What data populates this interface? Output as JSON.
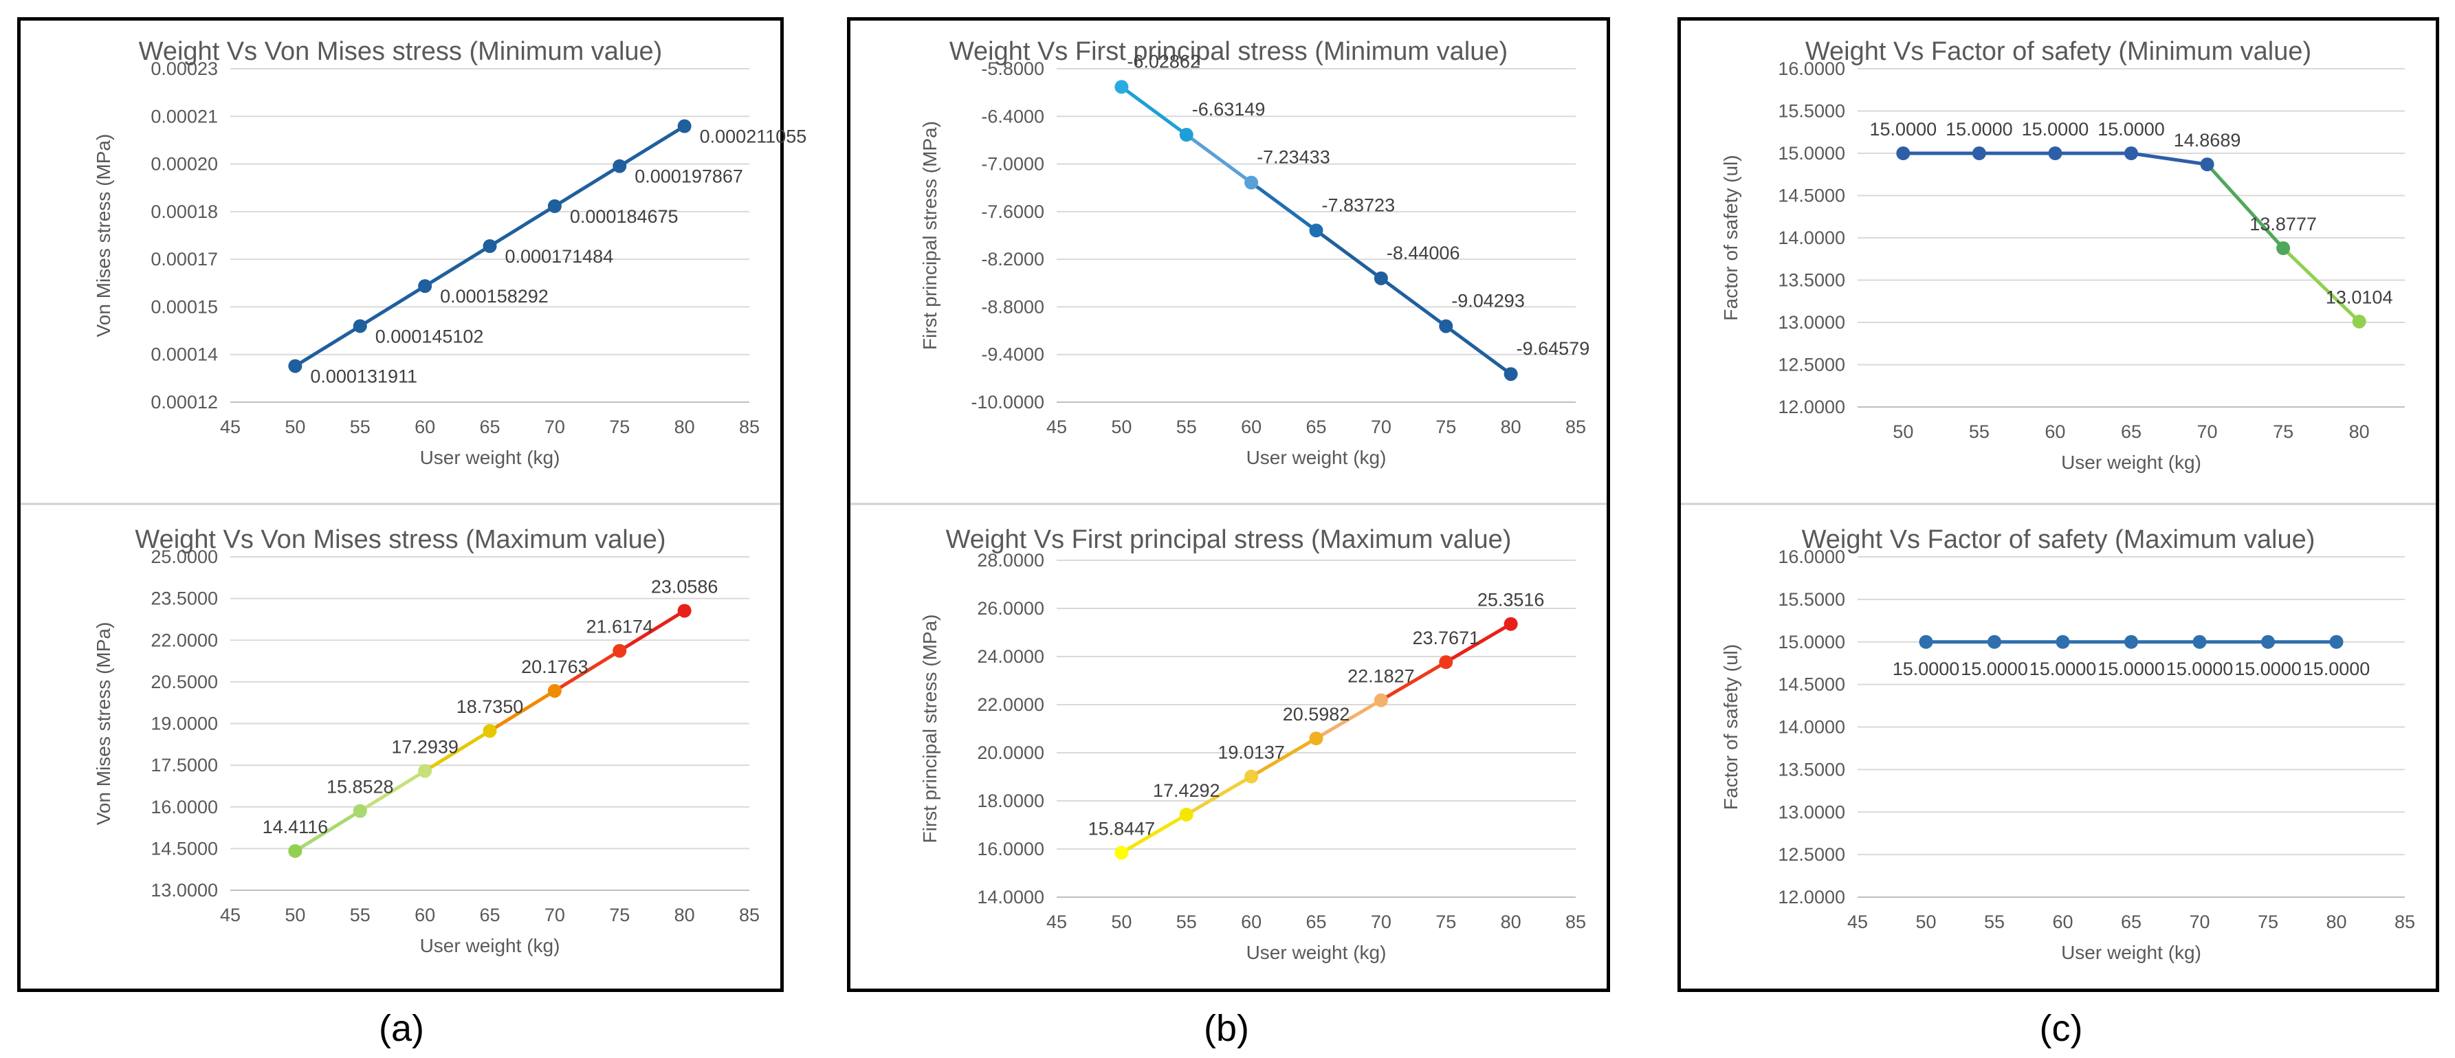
{
  "panels": [
    {
      "id": "a",
      "caption": "(a)"
    },
    {
      "id": "b",
      "caption": "(b)"
    },
    {
      "id": "c",
      "caption": "(c)"
    }
  ],
  "colors": {
    "blue": "#2f6fae",
    "light_blue": "#29abe2"
  },
  "chart_data": [
    {
      "panel": "a",
      "position": "top",
      "type": "line",
      "title": "Weight Vs Von Mises stress (Minimum value)",
      "xlabel": "User weight (kg)",
      "ylabel": "Von Mises stress (MPa)",
      "xlim": [
        45,
        85
      ],
      "xticks": [
        "45",
        "50",
        "55",
        "60",
        "65",
        "70",
        "75",
        "80",
        "85"
      ],
      "ylim": [
        0.00012,
        0.00023
      ],
      "yticks": [
        "0.00012",
        "0.00014",
        "0.00015",
        "0.00017",
        "0.00018",
        "0.00020",
        "0.00021",
        "0.00023"
      ],
      "x": [
        50,
        55,
        60,
        65,
        70,
        75,
        80
      ],
      "y": [
        0.000131911,
        0.000145102,
        0.000158292,
        0.000171484,
        0.000184675,
        0.000197867,
        0.000211055
      ],
      "labels": [
        "0.000131911",
        "0.000145102",
        "0.000158292",
        "0.000171484",
        "0.000184675",
        "0.000197867",
        "0.000211055"
      ],
      "label_pos": "right",
      "colors": [
        "#1f5f9e",
        "#1f5f9e",
        "#1f5f9e",
        "#1f5f9e",
        "#1f5f9e",
        "#1f5f9e",
        "#1f5f9e"
      ]
    },
    {
      "panel": "a",
      "position": "bottom",
      "type": "line",
      "title": "Weight Vs Von Mises stress (Maximum value)",
      "xlabel": "User weight (kg)",
      "ylabel": "Von Mises stress (MPa)",
      "xlim": [
        45,
        85
      ],
      "xticks": [
        "45",
        "50",
        "55",
        "60",
        "65",
        "70",
        "75",
        "80",
        "85"
      ],
      "ylim": [
        13,
        25
      ],
      "yticks": [
        "13.0000",
        "14.5000",
        "16.0000",
        "17.5000",
        "19.0000",
        "20.5000",
        "22.0000",
        "23.5000",
        "25.0000"
      ],
      "x": [
        50,
        55,
        60,
        65,
        70,
        75,
        80
      ],
      "y": [
        14.4116,
        15.8528,
        17.2939,
        18.735,
        20.1763,
        21.6174,
        23.0586
      ],
      "labels": [
        "14.4116",
        "15.8528",
        "17.2939",
        "18.7350",
        "20.1763",
        "21.6174",
        "23.0586"
      ],
      "label_pos": "above",
      "colors": [
        "#92d050",
        "#a9d870",
        "#c6e07a",
        "#e6c800",
        "#f08a00",
        "#ee3a1a",
        "#e8201a"
      ]
    },
    {
      "panel": "b",
      "position": "top",
      "type": "line",
      "title": "Weight Vs First principal stress (Minimum value)",
      "xlabel": "User weight (kg)",
      "ylabel": "First principal stress (MPa)",
      "xlim": [
        45,
        85
      ],
      "xticks": [
        "45",
        "50",
        "55",
        "60",
        "65",
        "70",
        "75",
        "80",
        "85"
      ],
      "ylim": [
        -10,
        -5.8
      ],
      "yticks": [
        "-10.0000",
        "-9.4000",
        "-8.8000",
        "-8.2000",
        "-7.6000",
        "-7.0000",
        "-6.4000",
        "-5.8000"
      ],
      "x": [
        50,
        55,
        60,
        65,
        70,
        75,
        80
      ],
      "y": [
        -6.02862,
        -6.63149,
        -7.23433,
        -7.83723,
        -8.44006,
        -9.04293,
        -9.64579
      ],
      "labels": [
        "-6.02862",
        "-6.63149",
        "-7.23433",
        "-7.83723",
        "-8.44006",
        "-9.04293",
        "-9.64579"
      ],
      "label_pos": "above-right",
      "colors": [
        "#29abe2",
        "#1e9fd8",
        "#5aa0d8",
        "#1f6fb2",
        "#1f5f9e",
        "#1f5f9e",
        "#1f5f9e"
      ]
    },
    {
      "panel": "b",
      "position": "bottom",
      "type": "line",
      "title": "Weight Vs First principal stress (Maximum value)",
      "xlabel": "User weight (kg)",
      "ylabel": "First principal stress (MPa)",
      "xlim": [
        45,
        85
      ],
      "xticks": [
        "45",
        "50",
        "55",
        "60",
        "65",
        "70",
        "75",
        "80",
        "85"
      ],
      "ylim": [
        14,
        28
      ],
      "yticks": [
        "14.0000",
        "16.0000",
        "18.0000",
        "20.0000",
        "22.0000",
        "24.0000",
        "26.0000",
        "28.0000"
      ],
      "x": [
        50,
        55,
        60,
        65,
        70,
        75,
        80
      ],
      "y": [
        15.8447,
        17.4292,
        19.0137,
        20.5982,
        22.1827,
        23.7671,
        25.3516
      ],
      "labels": [
        "15.8447",
        "17.4292",
        "19.0137",
        "20.5982",
        "22.1827",
        "23.7671",
        "25.3516"
      ],
      "label_pos": "above",
      "colors": [
        "#ffff00",
        "#f5e600",
        "#f2cf3a",
        "#f0b020",
        "#f5b06a",
        "#ee3a1a",
        "#e8201a"
      ]
    },
    {
      "panel": "c",
      "position": "top",
      "type": "line",
      "title": "Weight Vs Factor of safety (Minimum value)",
      "xlabel": "User weight (kg)",
      "ylabel": "Factor of safety (ul)",
      "xlim": [
        47,
        83
      ],
      "xticks": [
        "50",
        "55",
        "60",
        "65",
        "70",
        "75",
        "80"
      ],
      "ylim": [
        12,
        16
      ],
      "yticks": [
        "12.0000",
        "12.5000",
        "13.0000",
        "13.5000",
        "14.0000",
        "14.5000",
        "15.0000",
        "15.5000",
        "16.0000"
      ],
      "x": [
        50,
        55,
        60,
        65,
        70,
        75,
        80
      ],
      "y": [
        15,
        15,
        15,
        15,
        14.8689,
        13.8777,
        13.0104
      ],
      "labels": [
        "15.0000",
        "15.0000",
        "15.0000",
        "15.0000",
        "14.8689",
        "13.8777",
        "13.0104"
      ],
      "label_pos": "above",
      "colors": [
        "#2e5ea8",
        "#2e5ea8",
        "#2e5ea8",
        "#2e5ea8",
        "#2e5ea8",
        "#4ea85a",
        "#92d050"
      ]
    },
    {
      "panel": "c",
      "position": "bottom",
      "type": "line",
      "title": "Weight Vs Factor of safety (Maximum value)",
      "xlabel": "User weight (kg)",
      "ylabel": "Factor of safety (ul)",
      "xlim": [
        45,
        85
      ],
      "xticks": [
        "45",
        "50",
        "55",
        "60",
        "65",
        "70",
        "75",
        "80",
        "85"
      ],
      "ylim": [
        12,
        16
      ],
      "yticks": [
        "12.0000",
        "12.5000",
        "13.0000",
        "13.5000",
        "14.0000",
        "14.5000",
        "15.0000",
        "15.5000",
        "16.0000"
      ],
      "x": [
        50,
        55,
        60,
        65,
        70,
        75,
        80
      ],
      "y": [
        15,
        15,
        15,
        15,
        15,
        15,
        15
      ],
      "labels": [
        "15.0000",
        "15.0000",
        "15.0000",
        "15.0000",
        "15.0000",
        "15.0000",
        "15.0000"
      ],
      "label_pos": "below",
      "colors": [
        "#2f6fae",
        "#2f6fae",
        "#2f6fae",
        "#2f6fae",
        "#2f6fae",
        "#2f6fae",
        "#2f6fae"
      ]
    }
  ]
}
